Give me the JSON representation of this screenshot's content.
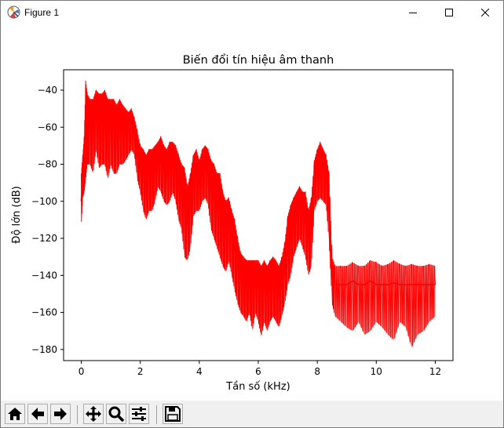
{
  "window": {
    "title": "Figure 1",
    "icons": {
      "app": "matplotlib-figure-icon",
      "minimize": "minimize-icon",
      "maximize": "maximize-icon",
      "close": "close-icon"
    }
  },
  "toolbar": {
    "buttons": [
      {
        "name": "home-button",
        "icon": "home-icon",
        "tooltip": ""
      },
      {
        "name": "back-button",
        "icon": "arrow-left-icon",
        "tooltip": ""
      },
      {
        "name": "forward-button",
        "icon": "arrow-right-icon",
        "tooltip": ""
      },
      {
        "name": "pan-button",
        "icon": "move-icon",
        "tooltip": ""
      },
      {
        "name": "zoom-button",
        "icon": "magnifier-icon",
        "tooltip": ""
      },
      {
        "name": "configure-subplots-button",
        "icon": "sliders-icon",
        "tooltip": ""
      },
      {
        "name": "save-button",
        "icon": "floppy-disk-icon",
        "tooltip": ""
      }
    ]
  },
  "chart_data": {
    "type": "line",
    "title": "Biến đổi tín hiệu âm thanh",
    "xlabel": "Tần số (kHz)",
    "ylabel": "Độ lớn (dB)",
    "xlim": [
      -0.6,
      12.6
    ],
    "ylim": [
      -186,
      -29
    ],
    "xticks": [
      0,
      2,
      4,
      6,
      8,
      10,
      12
    ],
    "yticks": [
      -180,
      -160,
      -140,
      -120,
      -100,
      -80,
      -60,
      -40
    ],
    "grid": false,
    "legend": "none",
    "color": "#ff0000",
    "series": [
      {
        "x": [
          0,
          0.05,
          0.1,
          0.15,
          0.2,
          0.3,
          0.4,
          0.5,
          0.6,
          0.7,
          0.8,
          0.9,
          1.0,
          1.1,
          1.2,
          1.3,
          1.4,
          1.5,
          1.6,
          1.7,
          1.8,
          1.9,
          2.0,
          2.1,
          2.2,
          2.3,
          2.4,
          2.5,
          2.6,
          2.7,
          2.8,
          2.9,
          3.0,
          3.1,
          3.2,
          3.3,
          3.4,
          3.5,
          3.6,
          3.7,
          3.8,
          3.9,
          4.0,
          4.1,
          4.2,
          4.3,
          4.4,
          4.5,
          4.6,
          4.7,
          4.8,
          4.9,
          5.0,
          5.1,
          5.2,
          5.3,
          5.4,
          5.5,
          5.6,
          5.7,
          5.8,
          5.9,
          6.0,
          6.1,
          6.2,
          6.3,
          6.4,
          6.5,
          6.6,
          6.7,
          6.8,
          6.9,
          7.0,
          7.1,
          7.2,
          7.3,
          7.4,
          7.5,
          7.6,
          7.7,
          7.8,
          7.9,
          8.0,
          8.1,
          8.2,
          8.3,
          8.4,
          8.5,
          8.6,
          8.8,
          9.0,
          9.2,
          9.4,
          9.6,
          9.8,
          10.0,
          10.2,
          10.4,
          10.6,
          10.8,
          11.0,
          11.2,
          11.4,
          11.6,
          11.8,
          12.0
        ],
        "y_center": [
          -100,
          -88,
          -80,
          -60,
          -50,
          -52,
          -55,
          -50,
          -55,
          -55,
          -52,
          -58,
          -55,
          -58,
          -60,
          -58,
          -57,
          -60,
          -60,
          -58,
          -60,
          -75,
          -82,
          -85,
          -88,
          -85,
          -85,
          -82,
          -78,
          -78,
          -82,
          -85,
          -82,
          -80,
          -82,
          -90,
          -95,
          -100,
          -112,
          -100,
          -88,
          -88,
          -90,
          -85,
          -82,
          -85,
          -92,
          -95,
          -100,
          -100,
          -110,
          -115,
          -112,
          -120,
          -125,
          -135,
          -140,
          -142,
          -142,
          -145,
          -148,
          -142,
          -145,
          -150,
          -145,
          -150,
          -148,
          -145,
          -148,
          -148,
          -145,
          -138,
          -125,
          -120,
          -112,
          -108,
          -105,
          -108,
          -110,
          -120,
          -112,
          -90,
          -85,
          -82,
          -82,
          -85,
          -100,
          -140,
          -145,
          -145,
          -145,
          -143,
          -145,
          -145,
          -143,
          -145,
          -145,
          -145,
          -144,
          -145,
          -145,
          -145,
          -145,
          -145,
          -145,
          -145
        ],
        "y_min": [
          -113,
          -98,
          -95,
          -88,
          -80,
          -80,
          -85,
          -72,
          -82,
          -80,
          -80,
          -88,
          -80,
          -85,
          -85,
          -80,
          -80,
          -78,
          -75,
          -72,
          -75,
          -88,
          -95,
          -105,
          -110,
          -105,
          -105,
          -100,
          -92,
          -95,
          -100,
          -102,
          -100,
          -95,
          -100,
          -110,
          -115,
          -130,
          -132,
          -125,
          -108,
          -105,
          -105,
          -100,
          -98,
          -102,
          -115,
          -120,
          -125,
          -130,
          -135,
          -138,
          -132,
          -140,
          -148,
          -155,
          -160,
          -162,
          -165,
          -160,
          -170,
          -160,
          -165,
          -173,
          -165,
          -170,
          -165,
          -162,
          -165,
          -168,
          -162,
          -155,
          -145,
          -140,
          -130,
          -125,
          -120,
          -125,
          -130,
          -140,
          -135,
          -105,
          -100,
          -98,
          -100,
          -102,
          -122,
          -155,
          -162,
          -165,
          -168,
          -170,
          -165,
          -172,
          -170,
          -165,
          -168,
          -172,
          -175,
          -165,
          -168,
          -179,
          -172,
          -170,
          -165,
          -162
        ],
        "y_max": [
          -85,
          -75,
          -65,
          -35,
          -42,
          -45,
          -45,
          -40,
          -42,
          -42,
          -40,
          -45,
          -45,
          -45,
          -48,
          -45,
          -48,
          -50,
          -52,
          -50,
          -55,
          -62,
          -70,
          -72,
          -75,
          -72,
          -72,
          -70,
          -68,
          -65,
          -70,
          -72,
          -68,
          -68,
          -70,
          -75,
          -80,
          -82,
          -92,
          -85,
          -75,
          -72,
          -78,
          -72,
          -70,
          -72,
          -78,
          -80,
          -85,
          -85,
          -95,
          -100,
          -98,
          -105,
          -110,
          -120,
          -128,
          -130,
          -132,
          -132,
          -132,
          -132,
          -132,
          -135,
          -132,
          -135,
          -132,
          -130,
          -132,
          -135,
          -130,
          -122,
          -108,
          -102,
          -98,
          -95,
          -92,
          -95,
          -95,
          -105,
          -98,
          -78,
          -72,
          -68,
          -72,
          -75,
          -85,
          -130,
          -135,
          -135,
          -135,
          -133,
          -135,
          -135,
          -132,
          -133,
          -135,
          -134,
          -132,
          -134,
          -135,
          -134,
          -135,
          -135,
          -134,
          -135
        ]
      }
    ]
  }
}
